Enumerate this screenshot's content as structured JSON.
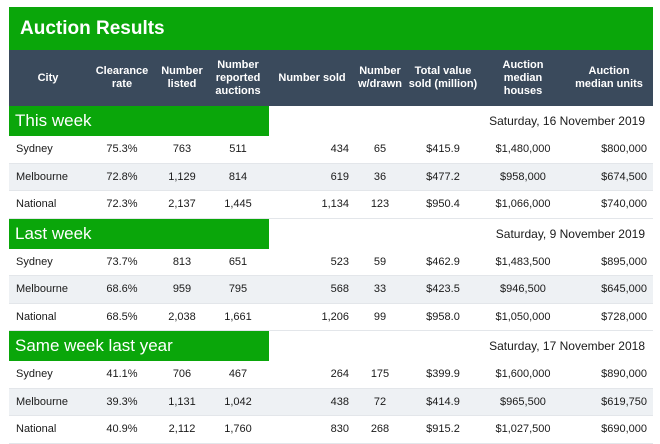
{
  "title": "Auction Results",
  "colors": {
    "accent_green": "#0aa60a",
    "header_slate": "#3a4a5c"
  },
  "columns": [
    "City",
    "Clearance rate",
    "Number listed",
    "Number reported auctions",
    "Number sold",
    "Number w/drawn",
    "Total value sold (million)",
    "Auction median houses",
    "Auction median units"
  ],
  "sections": [
    {
      "label": "This week",
      "date": "Saturday, 16 November 2019",
      "rows": [
        [
          "Sydney",
          "75.3%",
          "763",
          "511",
          "434",
          "65",
          "$415.9",
          "$1,480,000",
          "$800,000"
        ],
        [
          "Melbourne",
          "72.8%",
          "1,129",
          "814",
          "619",
          "36",
          "$477.2",
          "$958,000",
          "$674,500"
        ],
        [
          "National",
          "72.3%",
          "2,137",
          "1,445",
          "1,134",
          "123",
          "$950.4",
          "$1,066,000",
          "$740,000"
        ]
      ]
    },
    {
      "label": "Last week",
      "date": "Saturday, 9 November 2019",
      "rows": [
        [
          "Sydney",
          "73.7%",
          "813",
          "651",
          "523",
          "59",
          "$462.9",
          "$1,483,500",
          "$895,000"
        ],
        [
          "Melbourne",
          "68.6%",
          "959",
          "795",
          "568",
          "33",
          "$423.5",
          "$946,500",
          "$645,000"
        ],
        [
          "National",
          "68.5%",
          "2,038",
          "1,661",
          "1,206",
          "99",
          "$958.0",
          "$1,050,000",
          "$728,000"
        ]
      ]
    },
    {
      "label": "Same week last year",
      "date": "Saturday, 17 November 2018",
      "rows": [
        [
          "Sydney",
          "41.1%",
          "706",
          "467",
          "264",
          "175",
          "$399.9",
          "$1,600,000",
          "$890,000"
        ],
        [
          "Melbourne",
          "39.3%",
          "1,131",
          "1,042",
          "438",
          "72",
          "$414.9",
          "$965,500",
          "$619,750"
        ],
        [
          "National",
          "40.9%",
          "2,112",
          "1,760",
          "830",
          "268",
          "$915.2",
          "$1,027,500",
          "$690,000"
        ]
      ]
    }
  ]
}
